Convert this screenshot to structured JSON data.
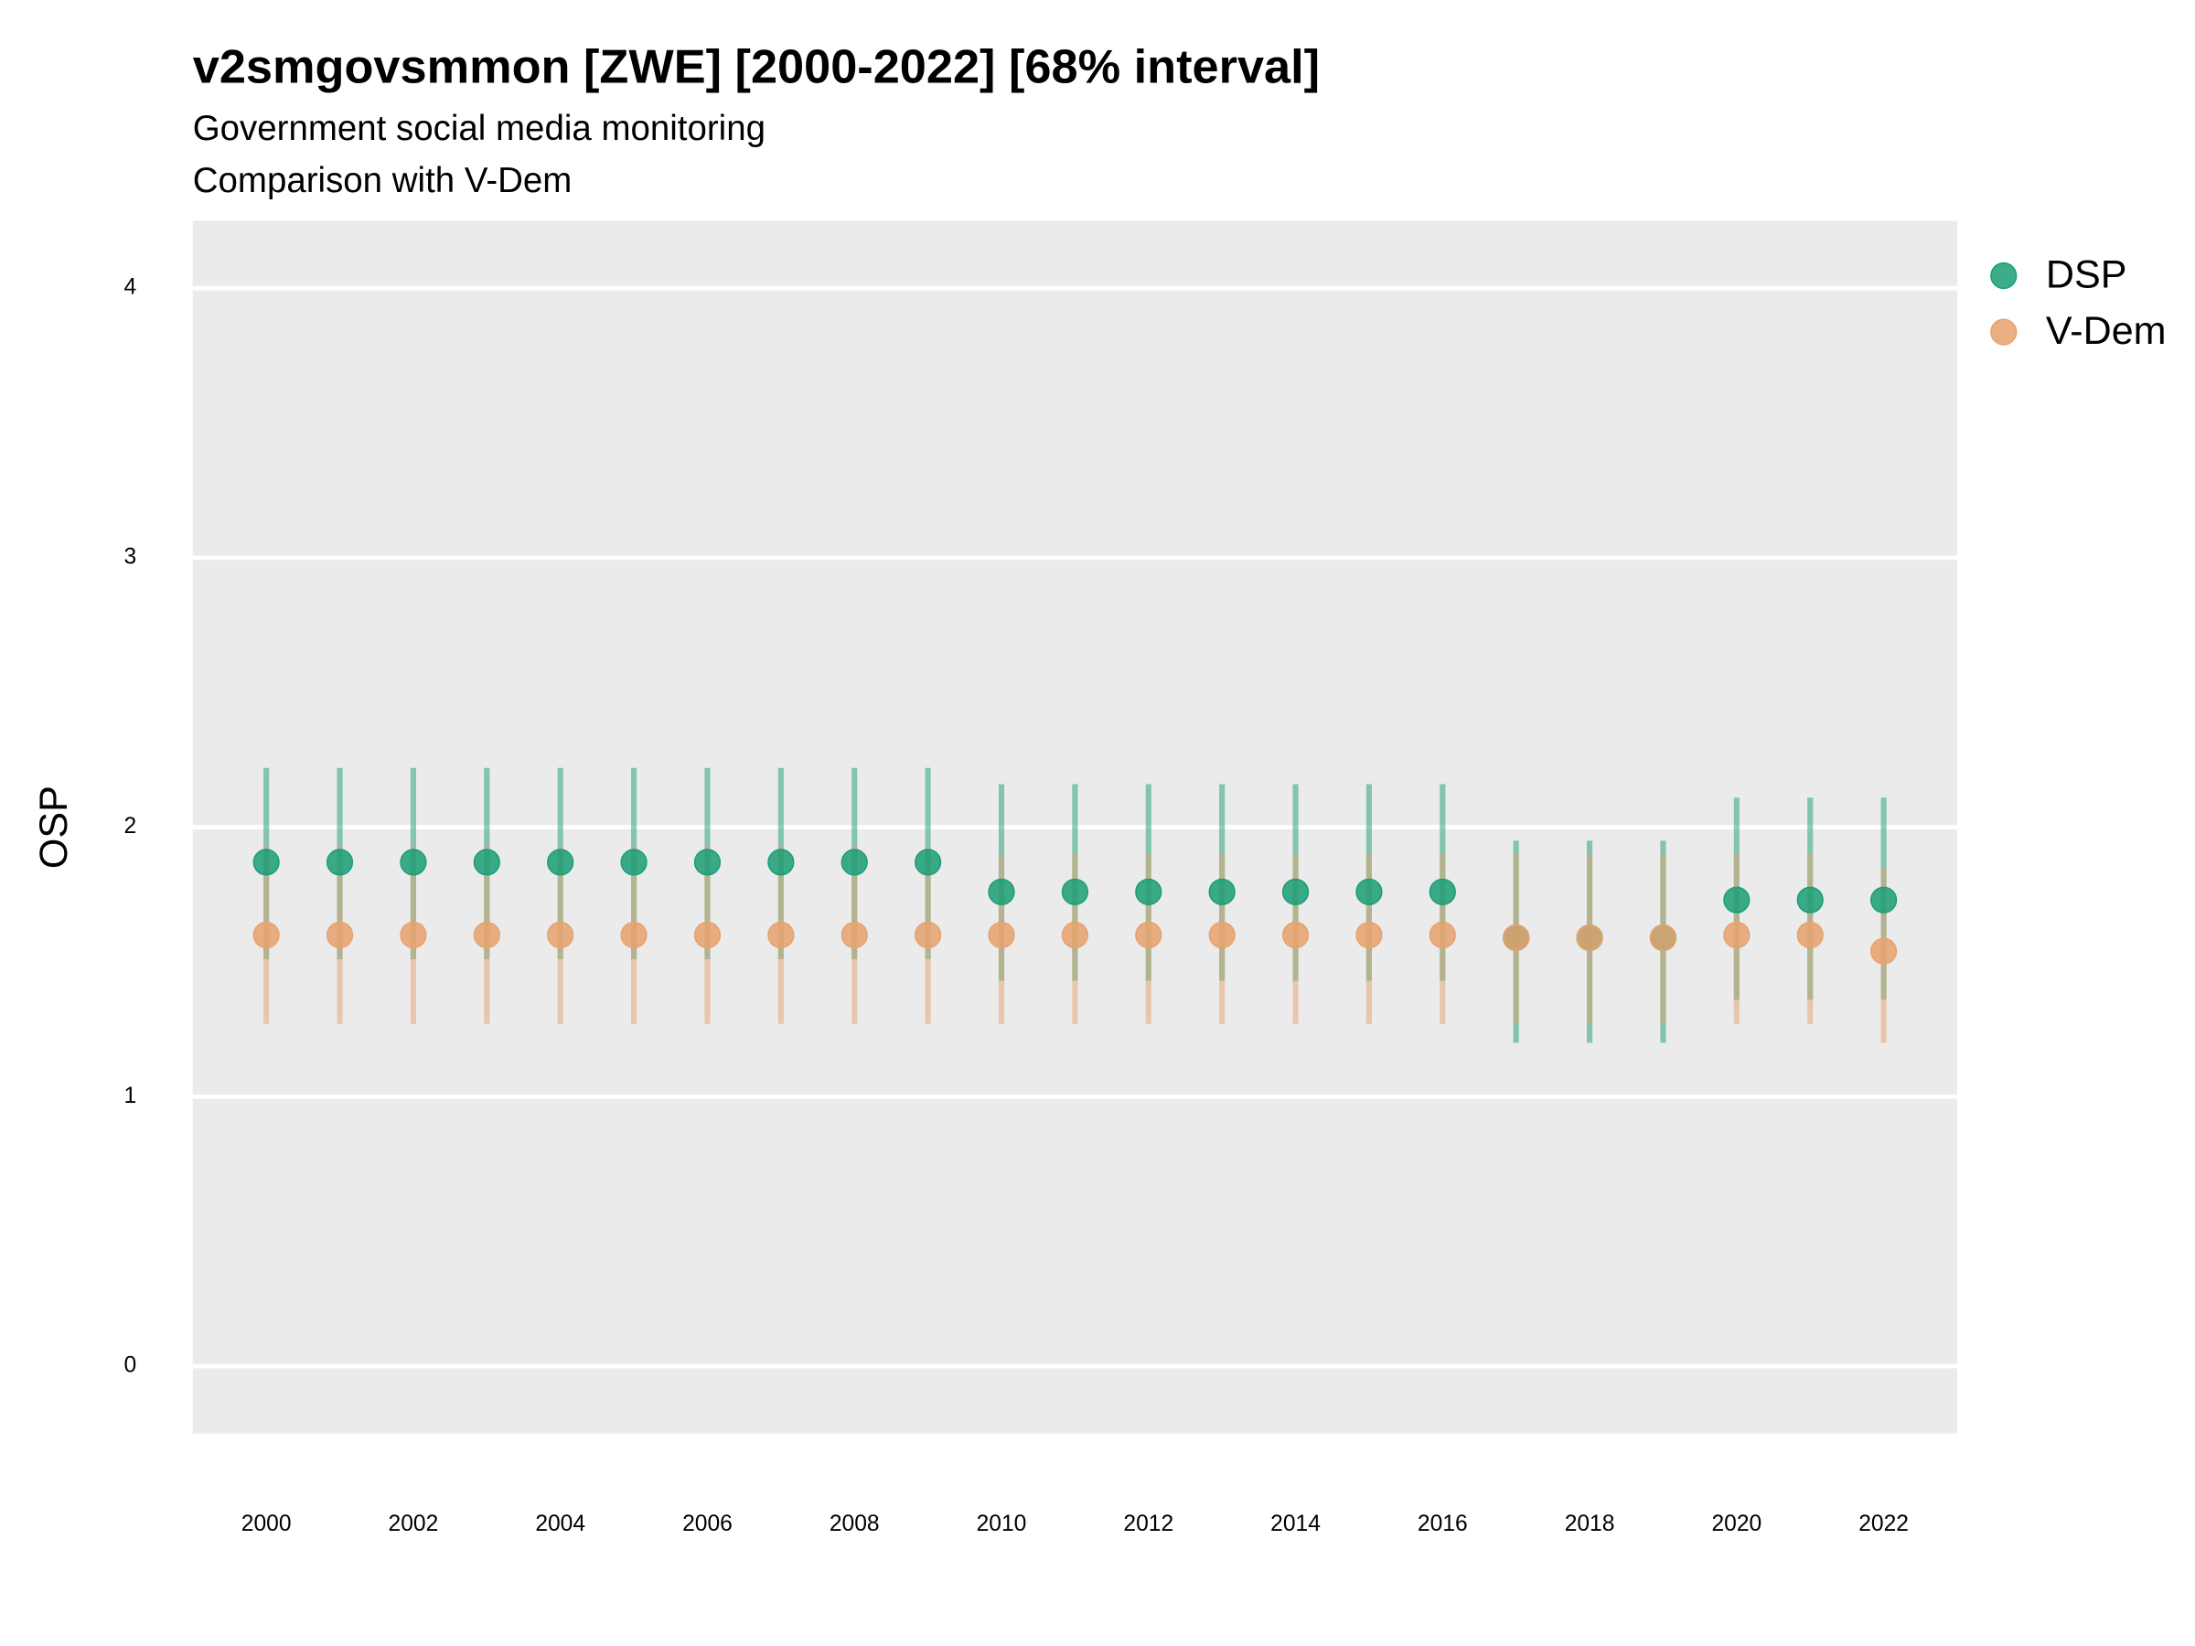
{
  "chart_data": {
    "type": "errorbar-dot",
    "title": "v2smgovsmmon [ZWE] [2000-2022] [68% interval]",
    "subtitle": [
      "Government social media monitoring",
      "Comparison with V-Dem"
    ],
    "y_label": "OSP",
    "x": [
      2000,
      2001,
      2002,
      2003,
      2004,
      2005,
      2006,
      2007,
      2008,
      2009,
      2010,
      2011,
      2012,
      2013,
      2014,
      2015,
      2016,
      2017,
      2018,
      2019,
      2020,
      2021,
      2022
    ],
    "xlim": [
      1999,
      2023
    ],
    "xticks": [
      2000,
      2002,
      2004,
      2006,
      2008,
      2010,
      2012,
      2014,
      2016,
      2018,
      2020,
      2022
    ],
    "ylim": [
      -0.25,
      4.25
    ],
    "yticks": [
      0,
      1,
      2,
      3,
      4
    ],
    "grid": true,
    "legend": "right",
    "series": [
      {
        "name": "DSP",
        "color": "#1b9e77",
        "values": [
          1.87,
          1.87,
          1.87,
          1.87,
          1.87,
          1.87,
          1.87,
          1.87,
          1.87,
          1.87,
          1.76,
          1.76,
          1.76,
          1.76,
          1.76,
          1.76,
          1.76,
          1.59,
          1.59,
          1.59,
          1.73,
          1.73,
          1.73
        ],
        "lower": [
          1.51,
          1.51,
          1.51,
          1.51,
          1.51,
          1.51,
          1.51,
          1.51,
          1.51,
          1.51,
          1.43,
          1.43,
          1.43,
          1.43,
          1.43,
          1.43,
          1.43,
          1.2,
          1.2,
          1.2,
          1.36,
          1.36,
          1.36
        ],
        "upper": [
          2.22,
          2.22,
          2.22,
          2.22,
          2.22,
          2.22,
          2.22,
          2.22,
          2.22,
          2.22,
          2.16,
          2.16,
          2.16,
          2.16,
          2.16,
          2.16,
          2.16,
          1.95,
          1.95,
          1.95,
          2.11,
          2.11,
          2.11
        ]
      },
      {
        "name": "V-Dem",
        "color": "#e6a26f",
        "values": [
          1.6,
          1.6,
          1.6,
          1.6,
          1.6,
          1.6,
          1.6,
          1.6,
          1.6,
          1.6,
          1.6,
          1.6,
          1.6,
          1.6,
          1.6,
          1.6,
          1.6,
          1.59,
          1.59,
          1.59,
          1.6,
          1.6,
          1.54
        ],
        "lower": [
          1.27,
          1.27,
          1.27,
          1.27,
          1.27,
          1.27,
          1.27,
          1.27,
          1.27,
          1.27,
          1.27,
          1.27,
          1.27,
          1.27,
          1.27,
          1.27,
          1.27,
          1.27,
          1.27,
          1.27,
          1.27,
          1.27,
          1.2
        ],
        "upper": [
          1.93,
          1.93,
          1.93,
          1.93,
          1.93,
          1.93,
          1.93,
          1.93,
          1.93,
          1.93,
          1.9,
          1.9,
          1.9,
          1.9,
          1.9,
          1.9,
          1.9,
          1.9,
          1.9,
          1.9,
          1.9,
          1.9,
          1.85
        ]
      }
    ]
  }
}
